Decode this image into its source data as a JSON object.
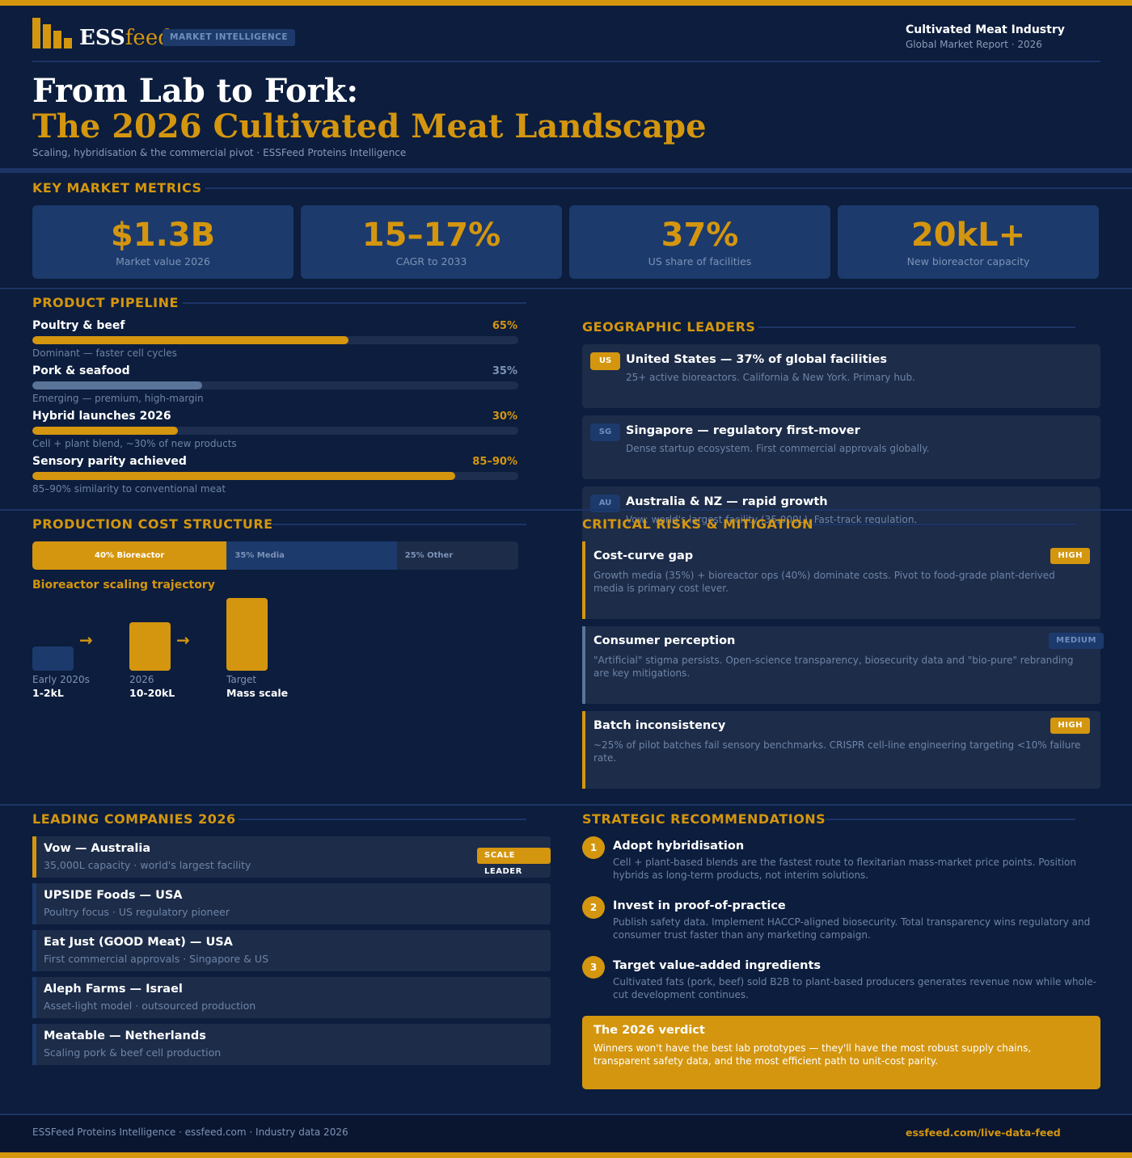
{
  "header": {
    "logo_text_1": "ESS",
    "logo_text_2": "feed",
    "badge": "MARKET INTELLIGENCE",
    "report_title": "Cultivated Meat Industry",
    "report_subtitle": "Global Market Report · 2026",
    "title_line1": "From Lab to Fork:",
    "title_line2": "The 2026 Cultivated Meat Landscape",
    "subtitle": "Scaling, hybridisation & the commercial pivot  ·  ESSFeed Proteins Intelligence"
  },
  "metrics": {
    "section_title": "KEY MARKET METRICS",
    "items": [
      {
        "value": "$1.3B",
        "label": "Market value 2026"
      },
      {
        "value": "15–17%",
        "label": "CAGR to 2033"
      },
      {
        "value": "37%",
        "label": "US share of facilities"
      },
      {
        "value": "20kL+",
        "label": "New bioreactor capacity"
      }
    ]
  },
  "pipeline": {
    "section_title": "PRODUCT PIPELINE",
    "items": [
      {
        "label": "Poultry & beef",
        "pct_text": "65%",
        "fill": 0.65,
        "note": "Dominant — faster cell cycles",
        "color": "#d4960f"
      },
      {
        "label": "Pork & seafood",
        "pct_text": "35%",
        "fill": 0.35,
        "note": "Emerging — premium, high-margin",
        "color": "#5a7499"
      },
      {
        "label": "Hybrid launches 2026",
        "pct_text": "30%",
        "fill": 0.3,
        "note": "Cell + plant blend, ~30% of new products",
        "color": "#d4960f"
      },
      {
        "label": "Sensory parity achieved",
        "pct_text": "85–90%",
        "fill": 0.87,
        "note": "85–90% similarity to conventional meat",
        "color": "#d4960f"
      }
    ]
  },
  "geo": {
    "section_title": "GEOGRAPHIC LEADERS",
    "items": [
      {
        "code": "US",
        "title": "United States — 37% of global facilities",
        "desc": "25+ active bioreactors. California & New York. Primary hub.",
        "primary": true
      },
      {
        "code": "SG",
        "title": "Singapore — regulatory first-mover",
        "desc": "Dense startup ecosystem. First commercial approvals globally.",
        "primary": false
      },
      {
        "code": "AU",
        "title": "Australia & NZ — rapid growth",
        "desc": "Vow: world's largest facility (35,000L). Fast-track regulation.",
        "primary": false
      }
    ]
  },
  "cost": {
    "section_title": "PRODUCTION COST STRUCTURE",
    "segments": [
      {
        "label": "40% Bioreactor",
        "share": 40,
        "color": "#d4960f",
        "text_color": "#ffffff"
      },
      {
        "label": "35% Media",
        "share": 35,
        "color": "#1c3a6c",
        "text_color": "#7d93b6"
      },
      {
        "label": "25% Other",
        "share": 25,
        "color": "#1c2c49",
        "text_color": "#7d93b6"
      }
    ],
    "scaling_title": "Bioreactor scaling trajectory",
    "steps": [
      {
        "label": "Early 2020s",
        "value": "1-2kL"
      },
      {
        "label": "2026",
        "value": "10-20kL"
      },
      {
        "label": "Target",
        "value": "Mass scale"
      }
    ],
    "arrow": "→"
  },
  "risks": {
    "section_title": "CRITICAL RISKS & MITIGATION",
    "items": [
      {
        "title": "Cost-curve gap",
        "level": "HIGH",
        "desc": "Growth media (35%) + bioreactor ops (40%) dominate costs. Pivot to food-grade plant-derived media is primary cost lever."
      },
      {
        "title": "Consumer perception",
        "level": "MEDIUM",
        "desc": "\"Artificial\" stigma persists. Open-science transparency, biosecurity data and \"bio-pure\" rebranding are key mitigations."
      },
      {
        "title": "Batch inconsistency",
        "level": "HIGH",
        "desc": "~25% of pilot batches fail sensory benchmarks. CRISPR cell-line engineering targeting <10% failure rate."
      }
    ]
  },
  "companies": {
    "section_title": "LEADING COMPANIES 2026",
    "items": [
      {
        "name": "Vow — Australia",
        "desc": "35,000L capacity · world's largest facility",
        "badge": "SCALE LEADER",
        "highlight": true
      },
      {
        "name": "UPSIDE Foods — USA",
        "desc": "Poultry focus · US regulatory pioneer",
        "highlight": false
      },
      {
        "name": "Eat Just (GOOD Meat) — USA",
        "desc": "First commercial approvals · Singapore & US",
        "highlight": false
      },
      {
        "name": "Aleph Farms — Israel",
        "desc": "Asset-light model · outsourced production",
        "highlight": false
      },
      {
        "name": "Meatable — Netherlands",
        "desc": "Scaling pork & beef cell production",
        "highlight": false
      }
    ]
  },
  "recommendations": {
    "section_title": "STRATEGIC RECOMMENDATIONS",
    "items": [
      {
        "num": "1",
        "title": "Adopt hybridisation",
        "desc": "Cell + plant-based blends are the fastest route to flexitarian mass-market price points. Position hybrids as long-term products, not interim solutions."
      },
      {
        "num": "2",
        "title": "Invest in proof-of-practice",
        "desc": "Publish safety data. Implement HACCP-aligned biosecurity. Total transparency wins regulatory and consumer trust faster than any marketing campaign."
      },
      {
        "num": "3",
        "title": "Target value-added ingredients",
        "desc": "Cultivated fats (pork, beef) sold B2B to plant-based producers generates revenue now while whole-cut development continues."
      }
    ],
    "verdict_title": "The 2026 verdict",
    "verdict_desc": "Winners won't have the best lab prototypes — they'll have the most robust supply chains, transparent safety data, and the most efficient path to unit-cost parity."
  },
  "footer": {
    "left": "ESSFeed Proteins Intelligence  ·  essfeed.com  ·  Industry data 2026",
    "right": "essfeed.com/live-data-feed"
  },
  "colors": {
    "accent": "#d4960f",
    "background": "#0c1d3d",
    "card": "#1c2c49",
    "muted_bar": "#5a7499"
  }
}
